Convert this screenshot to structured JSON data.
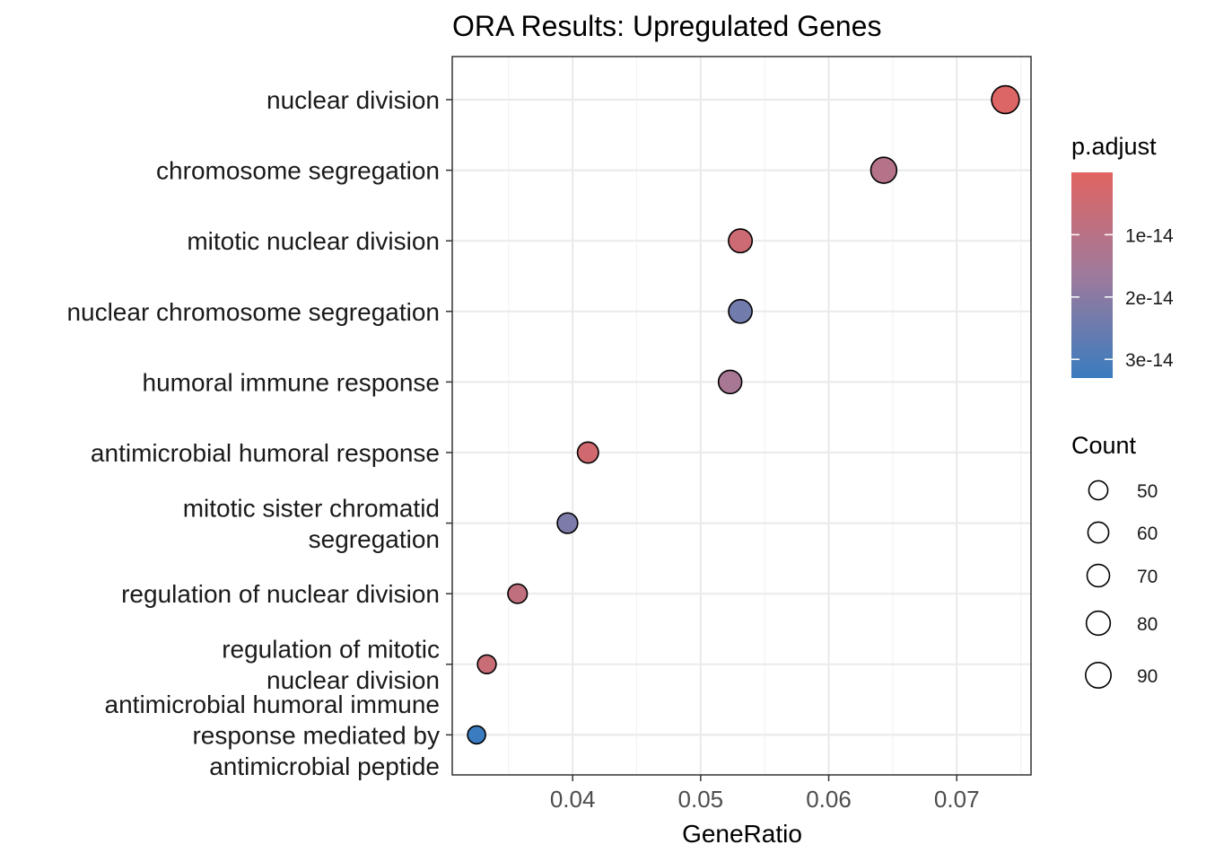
{
  "chart_data": {
    "type": "scatter",
    "title": "ORA Results: Upregulated Genes",
    "xlabel": "GeneRatio",
    "ylabel": "",
    "xlim": [
      0.0306,
      0.0758
    ],
    "x_ticks": [
      0.04,
      0.05,
      0.06,
      0.07
    ],
    "x_tick_labels": [
      "0.04",
      "0.05",
      "0.06",
      "0.07"
    ],
    "grid": true,
    "legend_position": "right",
    "points": [
      {
        "term": [
          "nuclear division"
        ],
        "gene_ratio": 0.0738,
        "count": 90,
        "p_adjust": 1e-15
      },
      {
        "term": [
          "chromosome segregation"
        ],
        "gene_ratio": 0.0643,
        "count": 79,
        "p_adjust": 1.1e-14
      },
      {
        "term": [
          "mitotic nuclear division"
        ],
        "gene_ratio": 0.0531,
        "count": 66,
        "p_adjust": 5e-15
      },
      {
        "term": [
          "nuclear chromosome segregation"
        ],
        "gene_ratio": 0.0531,
        "count": 65,
        "p_adjust": 2.4e-14
      },
      {
        "term": [
          "humoral immune response"
        ],
        "gene_ratio": 0.0523,
        "count": 64,
        "p_adjust": 1.4e-14
      },
      {
        "term": [
          "antimicrobial humoral response"
        ],
        "gene_ratio": 0.0412,
        "count": 52,
        "p_adjust": 4e-15
      },
      {
        "term": [
          "mitotic sister chromatid",
          "segregation"
        ],
        "gene_ratio": 0.0396,
        "count": 49,
        "p_adjust": 2.2e-14
      },
      {
        "term": [
          "regulation of nuclear division"
        ],
        "gene_ratio": 0.0357,
        "count": 44,
        "p_adjust": 8e-15
      },
      {
        "term": [
          "regulation of mitotic",
          "nuclear division"
        ],
        "gene_ratio": 0.0333,
        "count": 41,
        "p_adjust": 6e-15
      },
      {
        "term": [
          "antimicrobial humoral immune",
          "response mediated by",
          "antimicrobial peptide"
        ],
        "gene_ratio": 0.0325,
        "count": 38,
        "p_adjust": 3.5e-14
      }
    ],
    "color_legend": {
      "title": "p.adjust",
      "range": [
        0.0,
        3.3e-14
      ],
      "low_color": "#E06461",
      "mid_color": "#9E7A9C",
      "high_color": "#3A7CBF",
      "ticks": [
        1e-14,
        2e-14,
        3e-14
      ],
      "tick_labels": [
        "1e-14",
        "2e-14",
        "3e-14"
      ]
    },
    "size_legend": {
      "title": "Count",
      "values": [
        50,
        60,
        70,
        80,
        90
      ],
      "labels": [
        "50",
        "60",
        "70",
        "80",
        "90"
      ]
    }
  }
}
